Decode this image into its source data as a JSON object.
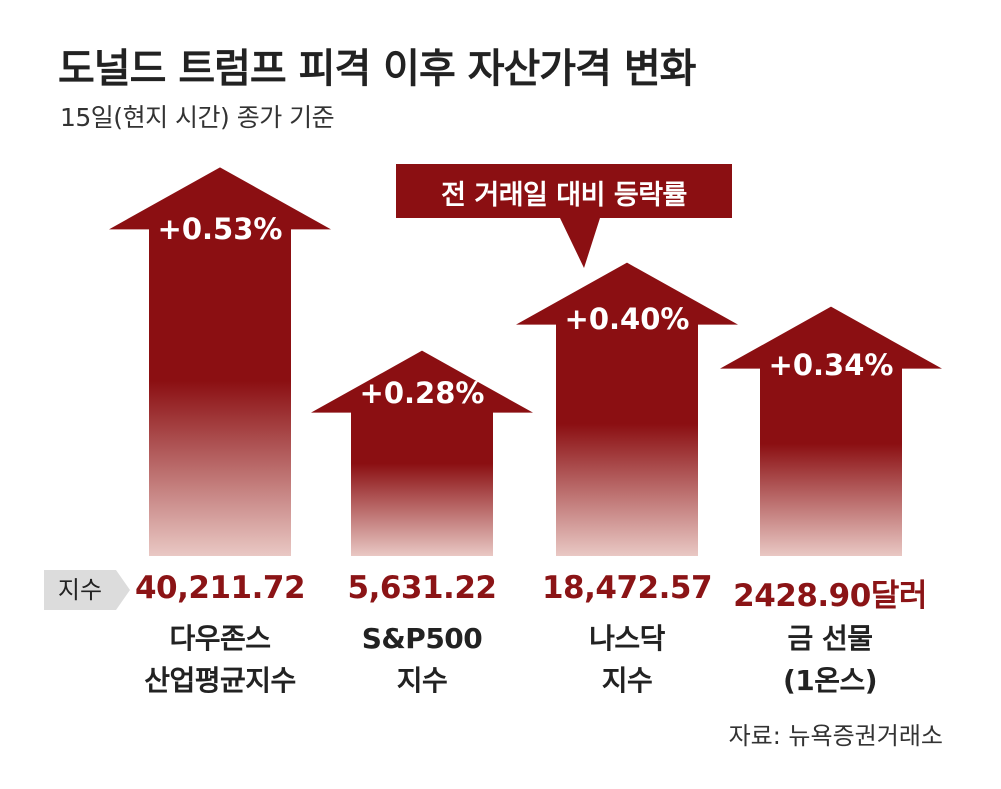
{
  "title": "도널드 트럼프 피격 이후 자산가격 변화",
  "subtitle": "15일(현지 시간) 종가 기준",
  "callout": "전 거래일 대비 등락률",
  "index_tag": "지수",
  "source": "자료: 뉴욕증권거래소",
  "colors": {
    "arrow_top": "#8b0f12",
    "arrow_bottom": "#e9c8c4",
    "value_text": "#8b1416",
    "tag_bg": "#dcdcdc"
  },
  "chart_data": {
    "type": "bar",
    "title": "도널드 트럼프 피격 이후 자산가격 변화",
    "subtitle": "15일(현지 시간) 종가 기준",
    "ylabel": "전 거래일 대비 등락률",
    "ylim": [
      0,
      0.6
    ],
    "categories": [
      "다우존스 산업평균지수",
      "S&P500 지수",
      "나스닥 지수",
      "금 선물 (1온스)"
    ],
    "series": [
      {
        "name": "전 거래일 대비 등락률",
        "values": [
          0.53,
          0.28,
          0.4,
          0.34
        ],
        "labels": [
          "+0.53%",
          "+0.28%",
          "+0.40%",
          "+0.34%"
        ]
      }
    ],
    "closing_values": [
      "40,211.72",
      "5,631.22",
      "18,472.57",
      "2428.90달러"
    ],
    "name_lines": [
      [
        "다우존스",
        "산업평균지수"
      ],
      [
        "S&P500",
        "지수"
      ],
      [
        "나스닥",
        "지수"
      ],
      [
        "금 선물",
        "(1온스)"
      ]
    ]
  }
}
